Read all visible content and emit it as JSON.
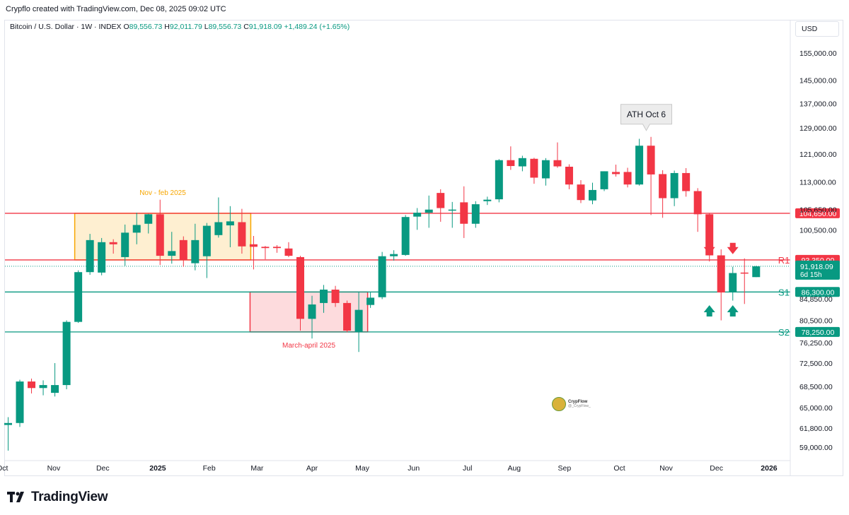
{
  "header": {
    "attribution": "Crypflo created with TradingView.com, Dec 08, 2025 09:02 UTC"
  },
  "legend": {
    "symbol": "Bitcoin / U.S. Dollar · 1W · INDEX",
    "o_label": "O",
    "open": "89,556.73",
    "h_label": "H",
    "high": "92,011.79",
    "l_label": "L",
    "low": "89,556.73",
    "c_label": "C",
    "close": "91,918.09",
    "change": "+1,489.24 (+1.65%)"
  },
  "currency": "USD",
  "footer": {
    "brand": "TradingView"
  },
  "watermark": {
    "name": "CrypFlow",
    "handle": "@_CrypFlow_"
  },
  "colors": {
    "up": "#089981",
    "down": "#f23645",
    "resistance": "#f23645",
    "support": "#089981",
    "orange": "#f7a600"
  },
  "chart_data": {
    "type": "candlestick",
    "title": "Bitcoin / U.S. Dollar · 1W · INDEX",
    "y_ticks": [
      155000,
      145000,
      137000,
      129000,
      121000,
      113000,
      105650,
      100500,
      84850,
      80500,
      76250,
      72500,
      68500,
      65000,
      61800,
      59000
    ],
    "y_tick_labels": [
      "155,000.00",
      "145,000.00",
      "137,000.00",
      "129,000.00",
      "121,000.00",
      "113,000.00",
      "105,650.00",
      "100,500.00",
      "84,850.00",
      "80,500.00",
      "76,250.00",
      "72,500.00",
      "68,500.00",
      "65,000.00",
      "61,800.00",
      "59,000.00"
    ],
    "x_ticks": [
      {
        "label": "Oct",
        "index": -0.5,
        "bold": false
      },
      {
        "label": "Nov",
        "index": 3.9,
        "bold": false
      },
      {
        "label": "Dec",
        "index": 8.1,
        "bold": false
      },
      {
        "label": "2025",
        "index": 12.8,
        "bold": true
      },
      {
        "label": "Feb",
        "index": 17.2,
        "bold": false
      },
      {
        "label": "Mar",
        "index": 21.3,
        "bold": false
      },
      {
        "label": "Apr",
        "index": 26.0,
        "bold": false
      },
      {
        "label": "May",
        "index": 30.3,
        "bold": false
      },
      {
        "label": "Jun",
        "index": 34.7,
        "bold": false
      },
      {
        "label": "Jul",
        "index": 39.3,
        "bold": false
      },
      {
        "label": "Aug",
        "index": 43.3,
        "bold": false
      },
      {
        "label": "Sep",
        "index": 47.6,
        "bold": false
      },
      {
        "label": "Oct",
        "index": 52.3,
        "bold": false
      },
      {
        "label": "Nov",
        "index": 56.3,
        "bold": false
      },
      {
        "label": "Dec",
        "index": 60.6,
        "bold": false
      },
      {
        "label": "2026",
        "index": 65.1,
        "bold": true
      }
    ],
    "candles": [
      {
        "o": 62300,
        "h": 63500,
        "l": 58500,
        "c": 62600
      },
      {
        "o": 62600,
        "h": 69600,
        "l": 62000,
        "c": 69300
      },
      {
        "o": 69300,
        "h": 69800,
        "l": 67300,
        "c": 68200
      },
      {
        "o": 68200,
        "h": 69500,
        "l": 67000,
        "c": 68700
      },
      {
        "o": 67400,
        "h": 72500,
        "l": 66800,
        "c": 68700
      },
      {
        "o": 68700,
        "h": 80500,
        "l": 68000,
        "c": 80200
      },
      {
        "o": 80200,
        "h": 91000,
        "l": 80000,
        "c": 90600
      },
      {
        "o": 90600,
        "h": 99500,
        "l": 90000,
        "c": 98000
      },
      {
        "o": 90500,
        "h": 98500,
        "l": 89900,
        "c": 97500
      },
      {
        "o": 97500,
        "h": 98200,
        "l": 94800,
        "c": 97000
      },
      {
        "o": 94000,
        "h": 101800,
        "l": 92000,
        "c": 99800
      },
      {
        "o": 99800,
        "h": 104800,
        "l": 97000,
        "c": 101700
      },
      {
        "o": 102000,
        "h": 104500,
        "l": 99600,
        "c": 104400
      },
      {
        "o": 104400,
        "h": 108200,
        "l": 92200,
        "c": 94300
      },
      {
        "o": 94300,
        "h": 100000,
        "l": 92500,
        "c": 95400
      },
      {
        "o": 98000,
        "h": 98900,
        "l": 91800,
        "c": 93300
      },
      {
        "o": 92600,
        "h": 102000,
        "l": 91000,
        "c": 98000
      },
      {
        "o": 94200,
        "h": 102200,
        "l": 89300,
        "c": 101500
      },
      {
        "o": 99200,
        "h": 108800,
        "l": 98600,
        "c": 102400
      },
      {
        "o": 101600,
        "h": 106500,
        "l": 96300,
        "c": 102600
      },
      {
        "o": 102400,
        "h": 105800,
        "l": 94800,
        "c": 96500
      },
      {
        "o": 97000,
        "h": 99000,
        "l": 91200,
        "c": 96400
      },
      {
        "o": 96400,
        "h": 96600,
        "l": 93500,
        "c": 96100
      },
      {
        "o": 96400,
        "h": 96800,
        "l": 95000,
        "c": 96100
      },
      {
        "o": 96000,
        "h": 97500,
        "l": 94000,
        "c": 94300
      },
      {
        "o": 94000,
        "h": 94300,
        "l": 78500,
        "c": 80800
      },
      {
        "o": 80800,
        "h": 85500,
        "l": 77000,
        "c": 83700
      },
      {
        "o": 84000,
        "h": 87800,
        "l": 82000,
        "c": 86800
      },
      {
        "o": 86800,
        "h": 87600,
        "l": 83200,
        "c": 84000
      },
      {
        "o": 84000,
        "h": 84500,
        "l": 78200,
        "c": 78500
      },
      {
        "o": 78200,
        "h": 86300,
        "l": 74500,
        "c": 82600
      },
      {
        "o": 83600,
        "h": 86200,
        "l": 83000,
        "c": 85100
      },
      {
        "o": 85200,
        "h": 95200,
        "l": 84800,
        "c": 94200
      },
      {
        "o": 94200,
        "h": 95600,
        "l": 93200,
        "c": 94700
      },
      {
        "o": 94500,
        "h": 104200,
        "l": 94300,
        "c": 103700
      },
      {
        "o": 103800,
        "h": 106000,
        "l": 100500,
        "c": 104800
      },
      {
        "o": 104800,
        "h": 109300,
        "l": 101000,
        "c": 105600
      },
      {
        "o": 110000,
        "h": 111000,
        "l": 102500,
        "c": 106000
      },
      {
        "o": 105600,
        "h": 107600,
        "l": 101000,
        "c": 105600
      },
      {
        "o": 107500,
        "h": 111800,
        "l": 98500,
        "c": 102000
      },
      {
        "o": 102000,
        "h": 107800,
        "l": 101000,
        "c": 107000
      },
      {
        "o": 107800,
        "h": 109000,
        "l": 106800,
        "c": 108200
      },
      {
        "o": 108300,
        "h": 119500,
        "l": 107500,
        "c": 119200
      },
      {
        "o": 119200,
        "h": 123300,
        "l": 116400,
        "c": 117500
      },
      {
        "o": 117400,
        "h": 120500,
        "l": 116000,
        "c": 119800
      },
      {
        "o": 119600,
        "h": 119900,
        "l": 112500,
        "c": 114200
      },
      {
        "o": 114000,
        "h": 119800,
        "l": 112000,
        "c": 119200
      },
      {
        "o": 119200,
        "h": 124500,
        "l": 117000,
        "c": 117400
      },
      {
        "o": 117300,
        "h": 118000,
        "l": 111000,
        "c": 112300
      },
      {
        "o": 112300,
        "h": 113500,
        "l": 107300,
        "c": 108100
      },
      {
        "o": 108000,
        "h": 112800,
        "l": 107000,
        "c": 110800
      },
      {
        "o": 111000,
        "h": 116000,
        "l": 110500,
        "c": 116000
      },
      {
        "o": 115800,
        "h": 117900,
        "l": 114500,
        "c": 115200
      },
      {
        "o": 115800,
        "h": 117000,
        "l": 111500,
        "c": 112300
      },
      {
        "o": 112300,
        "h": 125600,
        "l": 112000,
        "c": 123500
      },
      {
        "o": 123500,
        "h": 126200,
        "l": 104200,
        "c": 115100
      },
      {
        "o": 115200,
        "h": 116300,
        "l": 103500,
        "c": 108600
      },
      {
        "o": 108600,
        "h": 116200,
        "l": 106500,
        "c": 115500
      },
      {
        "o": 115500,
        "h": 116900,
        "l": 109000,
        "c": 110500
      },
      {
        "o": 110500,
        "h": 111300,
        "l": 100000,
        "c": 104400
      },
      {
        "o": 104400,
        "h": 104700,
        "l": 93000,
        "c": 94400
      },
      {
        "o": 94400,
        "h": 95800,
        "l": 80500,
        "c": 86200
      },
      {
        "o": 86200,
        "h": 91800,
        "l": 84500,
        "c": 90400
      },
      {
        "o": 90500,
        "h": 93700,
        "l": 83800,
        "c": 90300
      },
      {
        "o": 89500,
        "h": 92000,
        "l": 89500,
        "c": 91900
      }
    ],
    "levels": [
      {
        "value": 104650,
        "label": "104,650.00",
        "color": "#f23645",
        "tag": ""
      },
      {
        "value": 93350,
        "label": "93,350.00",
        "color": "#f23645",
        "tag": "R1"
      },
      {
        "value": 86300,
        "label": "86,300.00",
        "color": "#089981",
        "tag": "S1"
      },
      {
        "value": 78250,
        "label": "78,250.00",
        "color": "#089981",
        "tag": "S2"
      }
    ],
    "current_price": {
      "value": 91918,
      "label": "91,918.09",
      "countdown": "6d 15h"
    },
    "zones": [
      {
        "label": "Nov - feb 2025",
        "from_index": 6,
        "to_index": 21,
        "top": 104650,
        "bottom": 93350,
        "color": "#f7a600",
        "label_position": "above"
      },
      {
        "label": "March-april 2025",
        "from_index": 21,
        "to_index": 31,
        "top": 86300,
        "bottom": 78250,
        "color": "#f23645",
        "label_position": "below"
      }
    ],
    "callout": {
      "text": "ATH Oct 6",
      "index": 54.6,
      "price": 126200
    },
    "arrows": [
      {
        "direction": "down",
        "index": 60.0,
        "price": 96000,
        "color": "#f23645"
      },
      {
        "direction": "down",
        "index": 62.0,
        "price": 96000,
        "color": "#f23645"
      },
      {
        "direction": "up",
        "index": 60.0,
        "price": 82400,
        "color": "#089981"
      },
      {
        "direction": "up",
        "index": 62.0,
        "price": 82400,
        "color": "#089981"
      }
    ]
  }
}
